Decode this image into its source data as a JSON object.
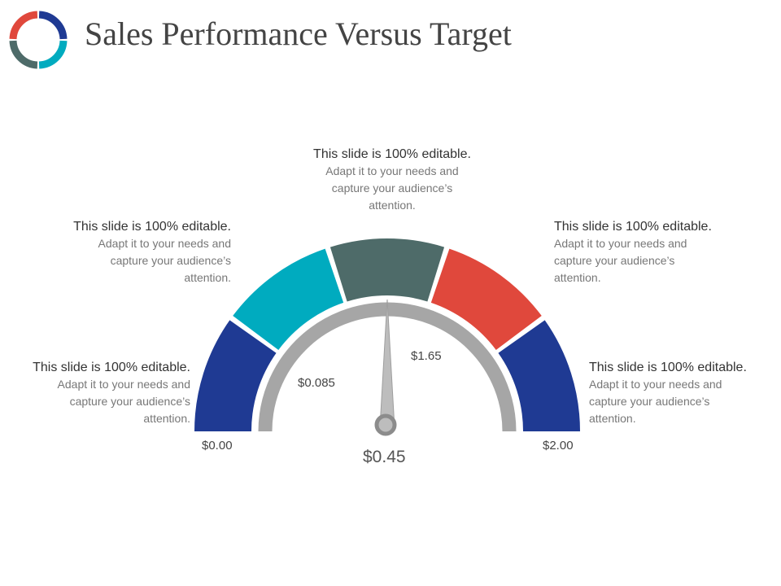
{
  "title": "Sales Performance Versus Target",
  "colors": {
    "dark_blue": "#1F3A93",
    "teal": "#00ABBF",
    "slate": "#4E6B69",
    "red": "#E0483C",
    "gauge_track": "#A6A6A6",
    "needle": "#BDBDBD"
  },
  "segments": [
    {
      "name": "segment-1",
      "color": "#1F3A93"
    },
    {
      "name": "segment-2",
      "color": "#00ABBF"
    },
    {
      "name": "segment-3",
      "color": "#4E6B69"
    },
    {
      "name": "segment-4",
      "color": "#E0483C"
    },
    {
      "name": "segment-5",
      "color": "#1F3A93"
    }
  ],
  "scale": {
    "min": 0,
    "max": 2
  },
  "needle_value": 0.45,
  "labels": {
    "min": "$0.00",
    "max": "$2.00",
    "inner_left": "$0.085",
    "inner_right": "$1.65",
    "reading": "$0.45"
  },
  "callouts": [
    {
      "id": "bottom-left",
      "head": "This slide is 100%",
      "em": "editable.",
      "rest": "Adapt it to your needs and capture your audience’s attention."
    },
    {
      "id": "upper-left",
      "head": "This slide is 100%",
      "em": "editable.",
      "rest": "Adapt it to your needs and capture your audience’s attention."
    },
    {
      "id": "top",
      "head": "This slide is 100%",
      "em": "editable.",
      "rest": "Adapt it to your needs and capture your audience’s attention."
    },
    {
      "id": "upper-right",
      "head": "This slide is 100%",
      "em": "editable.",
      "rest": "Adapt it to your needs and capture your audience’s attention."
    },
    {
      "id": "bottom-right",
      "head": "This slide is 100%",
      "em": "editable.",
      "rest": "Adapt it to your needs and capture your audience’s attention."
    }
  ]
}
